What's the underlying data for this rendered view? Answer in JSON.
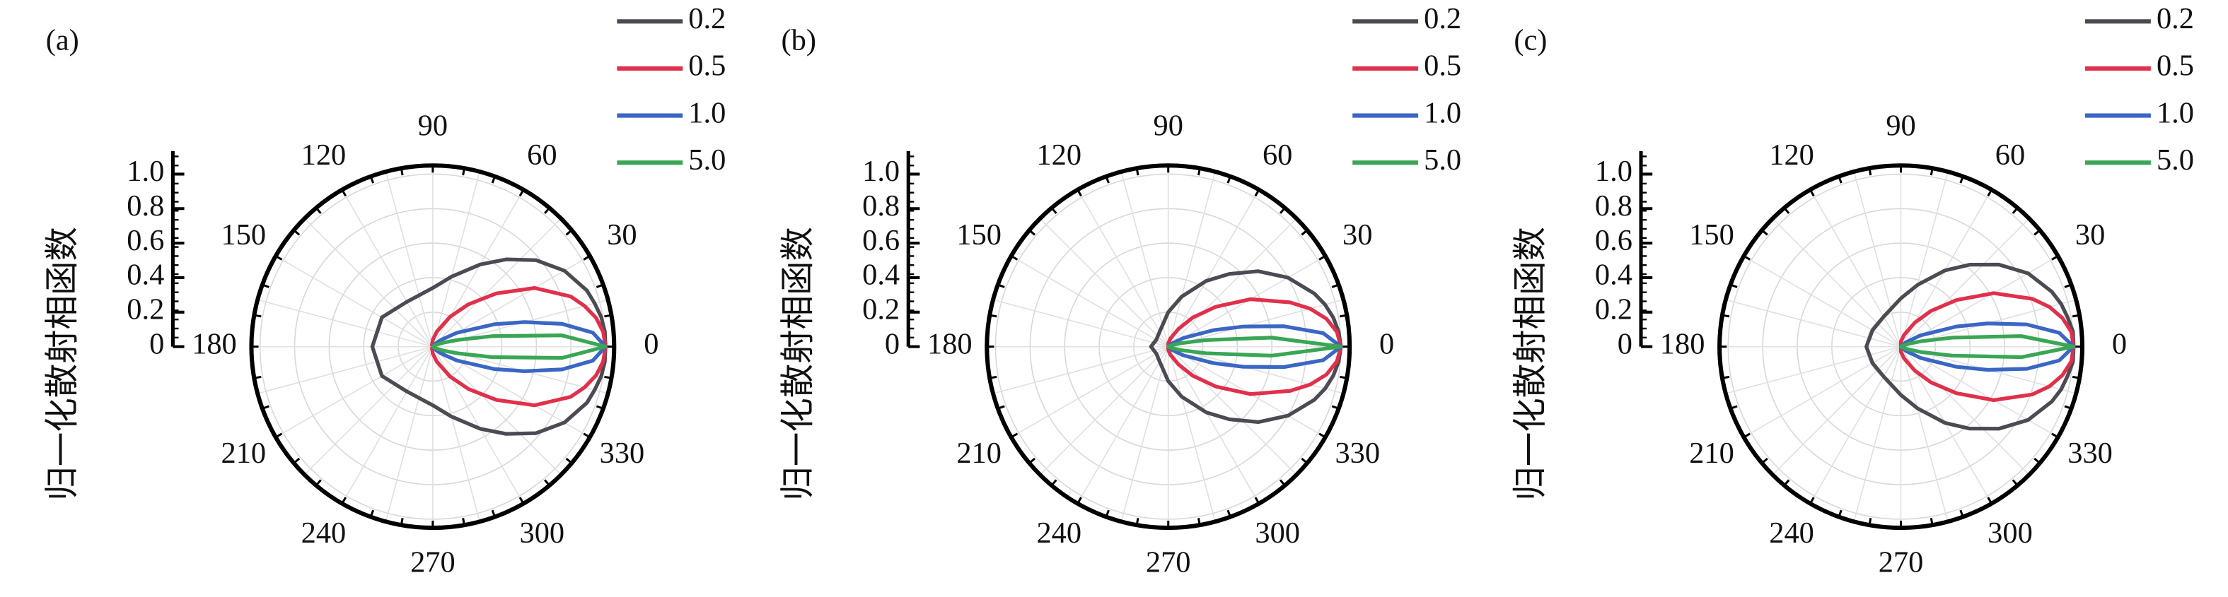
{
  "chart_data": [
    {
      "type": "polar",
      "panel_label": "(a)",
      "rlabel": "归一化散射相函数",
      "theta": [
        0,
        5,
        10,
        15,
        20,
        30,
        40,
        50,
        60,
        75,
        90,
        120,
        150,
        180,
        210,
        240,
        270,
        285,
        300,
        310,
        320,
        330,
        340,
        345,
        350,
        355
      ],
      "rlim": [
        0,
        1.05
      ],
      "rticks": [
        0,
        0.2,
        0.4,
        0.6,
        0.8,
        {
          "value": 1,
          "label": "1.0"
        }
      ],
      "thetaticks": [
        0,
        30,
        60,
        90,
        120,
        150,
        180,
        210,
        240,
        270,
        300,
        330
      ],
      "series": [
        {
          "name": "0.2",
          "color": "#4b4b53",
          "values": [
            1,
            1,
            0.99,
            0.97,
            0.95,
            0.88,
            0.78,
            0.66,
            0.55,
            0.42,
            0.34,
            0.3,
            0.34,
            0.35,
            0.34,
            0.3,
            0.34,
            0.42,
            0.55,
            0.66,
            0.78,
            0.88,
            0.95,
            0.97,
            0.99,
            1
          ]
        },
        {
          "name": "0.5",
          "color": "#e0304a",
          "values": [
            1,
            0.99,
            0.96,
            0.91,
            0.85,
            0.68,
            0.48,
            0.32,
            0.2,
            0.09,
            0.04,
            0.01,
            0,
            0,
            0,
            0.01,
            0.04,
            0.09,
            0.2,
            0.32,
            0.48,
            0.68,
            0.85,
            0.91,
            0.96,
            0.99
          ]
        },
        {
          "name": "1.0",
          "color": "#3a66c4",
          "values": [
            1,
            0.93,
            0.76,
            0.55,
            0.38,
            0.16,
            0.06,
            0.02,
            0,
            0,
            0,
            0,
            0,
            0,
            0,
            0,
            0,
            0,
            0,
            0.02,
            0.06,
            0.16,
            0.38,
            0.55,
            0.76,
            0.93
          ]
        },
        {
          "name": "5.0",
          "color": "#3aa655",
          "values": [
            1,
            0.75,
            0.35,
            0.15,
            0.07,
            0.02,
            0,
            0,
            0,
            0,
            0,
            0,
            0,
            0,
            0,
            0,
            0,
            0,
            0,
            0,
            0,
            0.02,
            0.07,
            0.15,
            0.35,
            0.75
          ]
        }
      ]
    },
    {
      "type": "polar",
      "panel_label": "(b)",
      "rlabel": "归一化散射相函数",
      "theta": [
        0,
        5,
        10,
        15,
        20,
        30,
        40,
        50,
        60,
        75,
        90,
        120,
        150,
        180,
        210,
        240,
        270,
        285,
        300,
        310,
        320,
        330,
        340,
        345,
        350,
        355
      ],
      "rlim": [
        0,
        1.05
      ],
      "rticks": [
        0,
        0.2,
        0.4,
        0.6,
        0.8,
        {
          "value": 1,
          "label": "1.0"
        }
      ],
      "thetaticks": [
        0,
        30,
        60,
        90,
        120,
        150,
        180,
        210,
        240,
        270,
        300,
        330
      ],
      "series": [
        {
          "name": "0.2",
          "color": "#4b4b53",
          "values": [
            1,
            0.99,
            0.97,
            0.94,
            0.9,
            0.8,
            0.68,
            0.55,
            0.44,
            0.3,
            0.2,
            0.1,
            0.08,
            0.1,
            0.08,
            0.1,
            0.2,
            0.3,
            0.44,
            0.55,
            0.68,
            0.8,
            0.9,
            0.94,
            0.97,
            0.99
          ]
        },
        {
          "name": "0.5",
          "color": "#e0304a",
          "values": [
            1,
            0.98,
            0.93,
            0.85,
            0.75,
            0.55,
            0.36,
            0.22,
            0.12,
            0.05,
            0.02,
            0,
            0,
            0,
            0,
            0,
            0.02,
            0.05,
            0.12,
            0.22,
            0.36,
            0.55,
            0.75,
            0.85,
            0.93,
            0.98
          ]
        },
        {
          "name": "1.0",
          "color": "#3a66c4",
          "values": [
            1,
            0.9,
            0.68,
            0.45,
            0.28,
            0.1,
            0.03,
            0,
            0,
            0,
            0,
            0,
            0,
            0,
            0,
            0,
            0,
            0,
            0,
            0,
            0.03,
            0.1,
            0.28,
            0.45,
            0.68,
            0.9
          ]
        },
        {
          "name": "5.0",
          "color": "#3aa655",
          "values": [
            1,
            0.6,
            0.22,
            0.08,
            0.03,
            0,
            0,
            0,
            0,
            0,
            0,
            0,
            0,
            0,
            0,
            0,
            0,
            0,
            0,
            0,
            0,
            0,
            0.03,
            0.08,
            0.22,
            0.6
          ]
        }
      ]
    },
    {
      "type": "polar",
      "panel_label": "(c)",
      "rlabel": "归一化散射相函数",
      "theta": [
        0,
        5,
        10,
        15,
        20,
        30,
        40,
        50,
        60,
        75,
        90,
        120,
        150,
        180,
        210,
        240,
        270,
        285,
        300,
        310,
        320,
        330,
        340,
        345,
        350,
        355
      ],
      "rlim": [
        0,
        1.05
      ],
      "rticks": [
        0,
        0.2,
        0.4,
        0.6,
        0.8,
        {
          "value": 1,
          "label": "1.0"
        }
      ],
      "thetaticks": [
        0,
        30,
        60,
        90,
        120,
        150,
        180,
        210,
        240,
        270,
        300,
        330
      ],
      "series": [
        {
          "name": "0.2",
          "color": "#4b4b53",
          "values": [
            1,
            1,
            0.98,
            0.96,
            0.93,
            0.85,
            0.74,
            0.62,
            0.51,
            0.37,
            0.28,
            0.2,
            0.19,
            0.2,
            0.19,
            0.2,
            0.28,
            0.37,
            0.51,
            0.62,
            0.74,
            0.85,
            0.93,
            0.96,
            0.98,
            1
          ]
        },
        {
          "name": "0.5",
          "color": "#e0304a",
          "values": [
            1,
            0.99,
            0.95,
            0.89,
            0.81,
            0.62,
            0.42,
            0.27,
            0.16,
            0.07,
            0.03,
            0,
            0,
            0,
            0,
            0,
            0.03,
            0.07,
            0.16,
            0.27,
            0.42,
            0.62,
            0.81,
            0.89,
            0.95,
            0.99
          ]
        },
        {
          "name": "1.0",
          "color": "#3a66c4",
          "values": [
            1,
            0.92,
            0.74,
            0.52,
            0.34,
            0.13,
            0.04,
            0.01,
            0,
            0,
            0,
            0,
            0,
            0,
            0,
            0,
            0,
            0,
            0,
            0.01,
            0.04,
            0.13,
            0.34,
            0.52,
            0.74,
            0.92
          ]
        },
        {
          "name": "5.0",
          "color": "#3aa655",
          "values": [
            1,
            0.7,
            0.3,
            0.12,
            0.05,
            0.01,
            0,
            0,
            0,
            0,
            0,
            0,
            0,
            0,
            0,
            0,
            0,
            0,
            0,
            0,
            0,
            0.01,
            0.05,
            0.12,
            0.3,
            0.7
          ]
        }
      ]
    }
  ]
}
